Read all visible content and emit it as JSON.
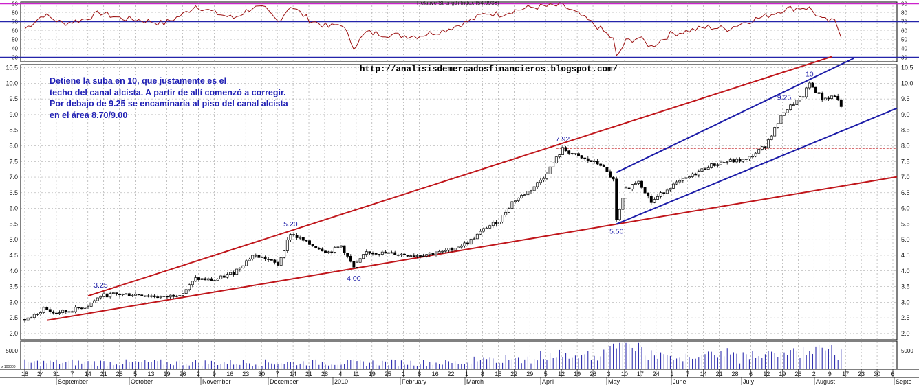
{
  "chart_data": {
    "type": "candlestick",
    "url": "http://analisisdemercadosfinancieros.blogspot.com/",
    "annotation": {
      "lines": [
        "Detiene la suba en 10, que justamente es el",
        "techo del canal alcista. A partir de allí comenzó a corregir.",
        "Por debajo de 9.25 se encaminaría al piso del canal alcista",
        "en el área 8.70/9.00"
      ]
    },
    "price_panel": {
      "ylim": [
        1.8,
        10.6
      ],
      "y_ticks": [
        "2.0",
        "2.5",
        "3.0",
        "3.5",
        "4.0",
        "4.5",
        "5.0",
        "5.5",
        "6.0",
        "6.5",
        "7.0",
        "7.5",
        "8.0",
        "8.5",
        "9.0",
        "9.5",
        "10.0",
        "10.5"
      ],
      "point_labels": [
        {
          "text": "3.25",
          "idx": 24,
          "value": 3.25
        },
        {
          "text": "5.20",
          "idx": 84,
          "value": 5.2
        },
        {
          "text": "4.00",
          "idx": 104,
          "value": 4.0
        },
        {
          "text": "7.92",
          "idx": 170,
          "value": 7.92
        },
        {
          "text": "5.50",
          "idx": 187,
          "value": 5.5
        },
        {
          "text": "9.25",
          "idx": 240,
          "value": 9.25
        },
        {
          "text": "10",
          "idx": 248,
          "value": 10.0
        }
      ],
      "resistance_level": 7.92,
      "key_points": [
        [
          0,
          2.45
        ],
        [
          4,
          2.6
        ],
        [
          6,
          2.82
        ],
        [
          9,
          2.65
        ],
        [
          14,
          2.72
        ],
        [
          20,
          2.9
        ],
        [
          24,
          3.2
        ],
        [
          28,
          3.25
        ],
        [
          36,
          3.25
        ],
        [
          44,
          3.15
        ],
        [
          50,
          3.3
        ],
        [
          54,
          3.75
        ],
        [
          60,
          3.7
        ],
        [
          66,
          3.95
        ],
        [
          72,
          4.5
        ],
        [
          76,
          4.4
        ],
        [
          80,
          4.2
        ],
        [
          84,
          5.2
        ],
        [
          90,
          4.85
        ],
        [
          96,
          4.6
        ],
        [
          100,
          4.8
        ],
        [
          104,
          4.1
        ],
        [
          108,
          4.6
        ],
        [
          116,
          4.55
        ],
        [
          124,
          4.5
        ],
        [
          132,
          4.6
        ],
        [
          140,
          4.9
        ],
        [
          146,
          5.4
        ],
        [
          150,
          5.6
        ],
        [
          154,
          6.2
        ],
        [
          160,
          6.6
        ],
        [
          164,
          7.0
        ],
        [
          170,
          7.9
        ],
        [
          176,
          7.6
        ],
        [
          182,
          7.4
        ],
        [
          186,
          6.9
        ],
        [
          187,
          5.6
        ],
        [
          190,
          6.6
        ],
        [
          194,
          6.9
        ],
        [
          198,
          6.2
        ],
        [
          204,
          6.7
        ],
        [
          210,
          7.0
        ],
        [
          216,
          7.35
        ],
        [
          222,
          7.5
        ],
        [
          228,
          7.55
        ],
        [
          234,
          8.0
        ],
        [
          240,
          9.1
        ],
        [
          246,
          9.6
        ],
        [
          248,
          10.0
        ],
        [
          252,
          9.5
        ],
        [
          256,
          9.6
        ],
        [
          258,
          9.3
        ]
      ],
      "n_bars": 259,
      "trend_lines": [
        {
          "name": "upper-red",
          "color": "#c0161b",
          "from": [
            20,
            3.2
          ],
          "to": [
            255,
            10.85
          ]
        },
        {
          "name": "lower-red",
          "color": "#c0161b",
          "from": [
            7,
            2.42
          ],
          "to": [
            278,
            7.05
          ]
        },
        {
          "name": "upper-blue",
          "color": "#1c1ca8",
          "from": [
            187,
            7.15
          ],
          "to": [
            262,
            10.8
          ]
        },
        {
          "name": "lower-blue",
          "color": "#1c1ca8",
          "from": [
            187,
            5.5
          ],
          "to": [
            278,
            9.3
          ]
        }
      ]
    },
    "rsi_panel": {
      "title": "Relative Strength Index (54.9938)",
      "ylim": [
        25,
        92
      ],
      "y_ticks": [
        "30",
        "40",
        "50",
        "60",
        "70",
        "80",
        "90"
      ],
      "levels": [
        {
          "value": 90,
          "color": "#cc22cc"
        },
        {
          "value": 70,
          "color": "#2424aa"
        },
        {
          "value": 30,
          "color": "#2424aa"
        }
      ],
      "key_points": [
        [
          0,
          62
        ],
        [
          6,
          78
        ],
        [
          12,
          68
        ],
        [
          18,
          72
        ],
        [
          24,
          80
        ],
        [
          30,
          74
        ],
        [
          36,
          72
        ],
        [
          44,
          68
        ],
        [
          50,
          78
        ],
        [
          54,
          88
        ],
        [
          60,
          80
        ],
        [
          66,
          74
        ],
        [
          72,
          86
        ],
        [
          76,
          84
        ],
        [
          80,
          70
        ],
        [
          84,
          88
        ],
        [
          90,
          72
        ],
        [
          96,
          64
        ],
        [
          100,
          68
        ],
        [
          104,
          42
        ],
        [
          108,
          58
        ],
        [
          116,
          55
        ],
        [
          124,
          54
        ],
        [
          132,
          60
        ],
        [
          140,
          70
        ],
        [
          146,
          80
        ],
        [
          150,
          78
        ],
        [
          154,
          82
        ],
        [
          160,
          86
        ],
        [
          164,
          87
        ],
        [
          170,
          88
        ],
        [
          176,
          76
        ],
        [
          182,
          62
        ],
        [
          186,
          50
        ],
        [
          187,
          30
        ],
        [
          190,
          48
        ],
        [
          194,
          52
        ],
        [
          198,
          42
        ],
        [
          204,
          56
        ],
        [
          210,
          60
        ],
        [
          216,
          64
        ],
        [
          222,
          62
        ],
        [
          228,
          70
        ],
        [
          234,
          76
        ],
        [
          240,
          84
        ],
        [
          246,
          86
        ],
        [
          248,
          85
        ],
        [
          252,
          72
        ],
        [
          256,
          70
        ],
        [
          258,
          55
        ]
      ]
    },
    "volume_panel": {
      "y_ticks": [
        "5000"
      ],
      "corner_label": "x 100000"
    },
    "x_axis": {
      "day_labels": [
        "18",
        "24",
        "31",
        "7",
        "14",
        "21",
        "28",
        "5",
        "13",
        "19",
        "26",
        "2",
        "9",
        "16",
        "23",
        "30",
        "7",
        "14",
        "21",
        "28",
        "4",
        "11",
        "19",
        "25",
        "1",
        "8",
        "16",
        "22",
        "1",
        "8",
        "15",
        "22",
        "29",
        "5",
        "12",
        "19",
        "26",
        "3",
        "10",
        "17",
        "24",
        "1",
        "7",
        "14",
        "21",
        "28",
        "6",
        "12",
        "19",
        "26",
        "2",
        "9",
        "17",
        "23",
        "30",
        "6"
      ],
      "month_labels": [
        "September",
        "October",
        "November",
        "December",
        "2010",
        "February",
        "March",
        "April",
        "May",
        "June",
        "July",
        "August",
        "Septe"
      ]
    }
  }
}
